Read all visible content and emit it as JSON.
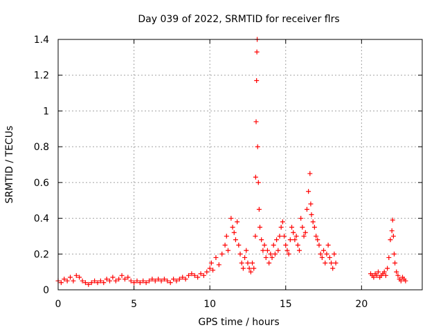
{
  "chart_data": {
    "type": "scatter",
    "title": "Day 039 of 2022, SRMTID for receiver flrs",
    "xlabel": "GPS time / hours",
    "ylabel": "SRMTID / TECUs",
    "xlim": [
      0,
      24
    ],
    "ylim": [
      0,
      1.4
    ],
    "x_ticks": [
      0,
      5,
      10,
      15,
      20
    ],
    "x_tick_labels": [
      "0",
      "5",
      "10",
      "15",
      "20"
    ],
    "y_ticks": [
      0,
      0.2,
      0.4,
      0.6,
      0.8,
      1.0,
      1.2,
      1.4
    ],
    "y_tick_labels": [
      "0",
      "0.2",
      "0.4",
      "0.6",
      "0.8",
      "1",
      "1.2",
      "1.4"
    ],
    "grid": true,
    "marker": "plus",
    "series": [
      {
        "name": "SRMTID",
        "color": "#ff0000",
        "x": [
          0.0,
          0.2,
          0.4,
          0.6,
          0.8,
          1.0,
          1.2,
          1.4,
          1.6,
          1.8,
          2.0,
          2.2,
          2.4,
          2.6,
          2.8,
          3.0,
          3.2,
          3.4,
          3.6,
          3.8,
          4.0,
          4.2,
          4.4,
          4.6,
          4.8,
          5.0,
          5.2,
          5.4,
          5.6,
          5.8,
          6.0,
          6.2,
          6.4,
          6.6,
          6.8,
          7.0,
          7.2,
          7.4,
          7.6,
          7.8,
          8.0,
          8.2,
          8.4,
          8.6,
          8.8,
          9.0,
          9.2,
          9.4,
          9.6,
          9.8,
          10.0,
          10.1,
          10.2,
          10.4,
          10.6,
          10.8,
          11.0,
          11.1,
          11.2,
          11.4,
          11.5,
          11.6,
          11.7,
          11.8,
          11.9,
          12.0,
          12.1,
          12.2,
          12.3,
          12.4,
          12.5,
          12.6,
          12.7,
          12.8,
          12.9,
          13.0,
          13.02,
          13.05,
          13.08,
          13.1,
          13.12,
          13.15,
          13.2,
          13.25,
          13.3,
          13.4,
          13.5,
          13.6,
          13.7,
          13.8,
          13.9,
          14.0,
          14.1,
          14.2,
          14.3,
          14.4,
          14.5,
          14.6,
          14.7,
          14.8,
          14.9,
          15.0,
          15.1,
          15.2,
          15.3,
          15.4,
          15.5,
          15.6,
          15.7,
          15.8,
          15.9,
          16.0,
          16.1,
          16.2,
          16.3,
          16.4,
          16.5,
          16.6,
          16.65,
          16.7,
          16.8,
          16.9,
          17.0,
          17.1,
          17.2,
          17.3,
          17.4,
          17.5,
          17.6,
          17.7,
          17.8,
          17.9,
          18.0,
          18.1,
          18.2,
          18.3,
          20.6,
          20.7,
          20.8,
          20.9,
          21.0,
          21.1,
          21.2,
          21.3,
          21.4,
          21.5,
          21.6,
          21.7,
          21.8,
          21.9,
          22.0,
          22.05,
          22.1,
          22.15,
          22.2,
          22.3,
          22.4,
          22.5,
          22.6,
          22.7,
          22.8,
          22.9
        ],
        "y": [
          0.05,
          0.04,
          0.06,
          0.05,
          0.07,
          0.05,
          0.08,
          0.07,
          0.05,
          0.04,
          0.03,
          0.04,
          0.05,
          0.04,
          0.05,
          0.04,
          0.06,
          0.05,
          0.07,
          0.05,
          0.06,
          0.08,
          0.06,
          0.07,
          0.05,
          0.04,
          0.05,
          0.04,
          0.05,
          0.04,
          0.05,
          0.06,
          0.05,
          0.06,
          0.05,
          0.06,
          0.05,
          0.04,
          0.06,
          0.05,
          0.06,
          0.07,
          0.06,
          0.08,
          0.09,
          0.08,
          0.07,
          0.09,
          0.08,
          0.1,
          0.12,
          0.15,
          0.11,
          0.18,
          0.14,
          0.2,
          0.25,
          0.3,
          0.22,
          0.4,
          0.35,
          0.32,
          0.28,
          0.38,
          0.25,
          0.2,
          0.15,
          0.12,
          0.18,
          0.22,
          0.15,
          0.12,
          0.1,
          0.15,
          0.12,
          0.3,
          0.63,
          0.94,
          1.17,
          1.33,
          1.4,
          0.8,
          0.6,
          0.45,
          0.35,
          0.28,
          0.22,
          0.25,
          0.18,
          0.22,
          0.15,
          0.2,
          0.18,
          0.25,
          0.2,
          0.28,
          0.22,
          0.3,
          0.35,
          0.38,
          0.3,
          0.25,
          0.22,
          0.2,
          0.28,
          0.35,
          0.32,
          0.28,
          0.3,
          0.25,
          0.22,
          0.4,
          0.35,
          0.3,
          0.32,
          0.45,
          0.55,
          0.65,
          0.48,
          0.42,
          0.38,
          0.35,
          0.3,
          0.28,
          0.25,
          0.2,
          0.18,
          0.22,
          0.15,
          0.2,
          0.25,
          0.18,
          0.15,
          0.12,
          0.2,
          0.15,
          0.09,
          0.08,
          0.07,
          0.09,
          0.08,
          0.1,
          0.07,
          0.08,
          0.09,
          0.1,
          0.08,
          0.12,
          0.18,
          0.28,
          0.33,
          0.39,
          0.3,
          0.2,
          0.15,
          0.1,
          0.08,
          0.06,
          0.05,
          0.07,
          0.06,
          0.05
        ]
      }
    ]
  }
}
